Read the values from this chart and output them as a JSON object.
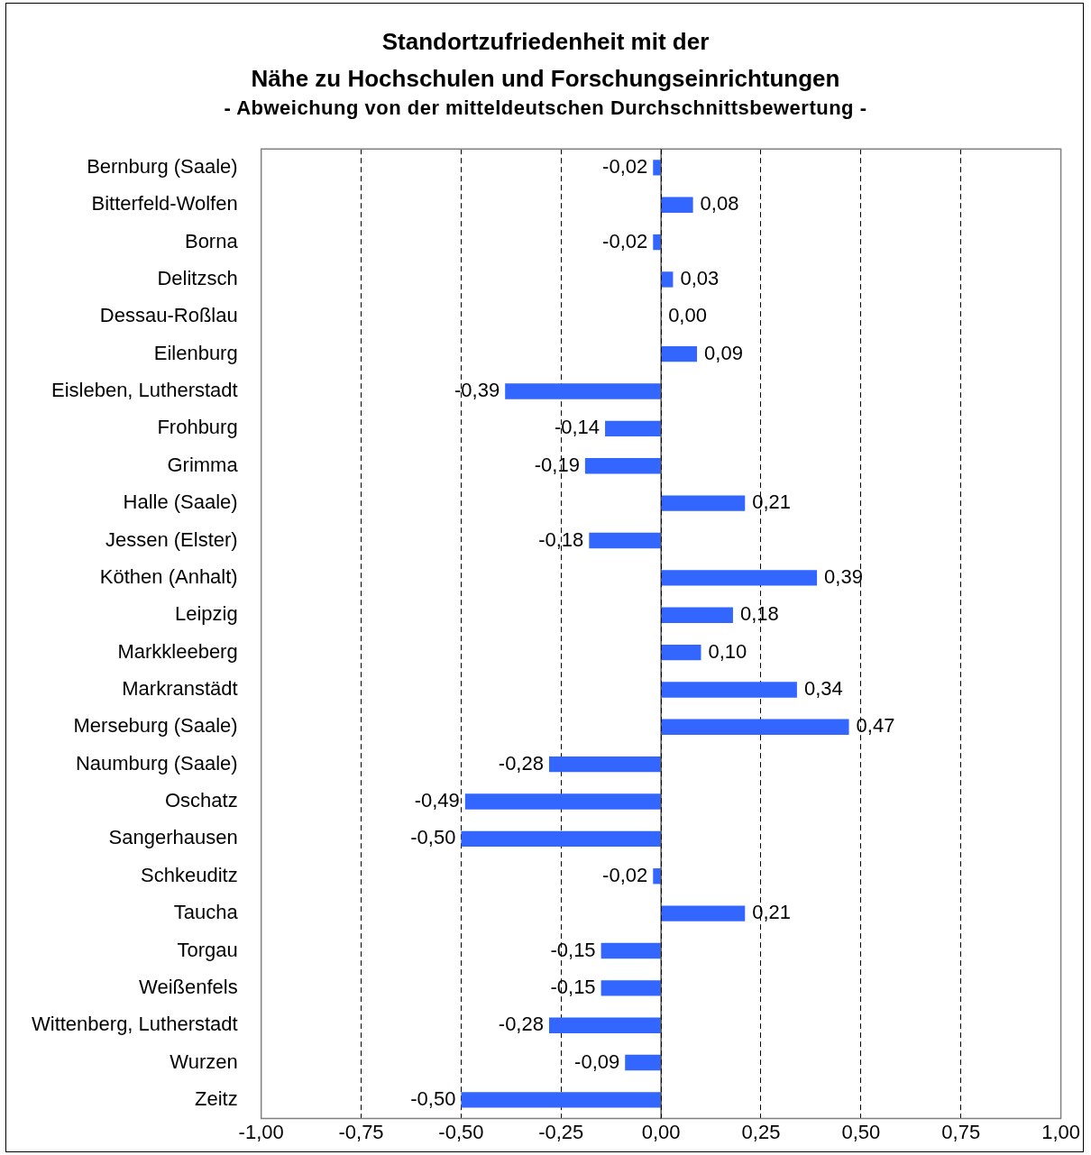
{
  "chart_data": {
    "type": "bar",
    "orientation": "horizontal",
    "title": "Standortzufriedenheit mit der\nNähe zu Hochschulen und Forschungseinrichtungen",
    "subtitle": "- Abweichung von der mitteldeutschen Durchschnittsbewertung -",
    "categories": [
      "Bernburg (Saale)",
      "Bitterfeld-Wolfen",
      "Borna",
      "Delitzsch",
      "Dessau-Roßlau",
      "Eilenburg",
      "Eisleben, Lutherstadt",
      "Frohburg",
      "Grimma",
      "Halle (Saale)",
      "Jessen (Elster)",
      "Köthen (Anhalt)",
      "Leipzig",
      "Markkleeberg",
      "Markranstädt",
      "Merseburg (Saale)",
      "Naumburg (Saale)",
      "Oschatz",
      "Sangerhausen",
      "Schkeuditz",
      "Taucha",
      "Torgau",
      "Weißenfels",
      "Wittenberg, Lutherstadt",
      "Wurzen",
      "Zeitz"
    ],
    "values": [
      -0.02,
      0.08,
      -0.02,
      0.03,
      0.0,
      0.09,
      -0.39,
      -0.14,
      -0.19,
      0.21,
      -0.18,
      0.39,
      0.18,
      0.1,
      0.34,
      0.47,
      -0.28,
      -0.49,
      -0.5,
      -0.02,
      0.21,
      -0.15,
      -0.15,
      -0.28,
      -0.09,
      -0.5
    ],
    "value_labels": [
      "-0,02",
      "0,08",
      "-0,02",
      "0,03",
      "0,00",
      "0,09",
      "-0,39",
      "-0,14",
      "-0,19",
      "0,21",
      "-0,18",
      "0,39",
      "0,18",
      "0,10",
      "0,34",
      "0,47",
      "-0,28",
      "-0,49",
      "-0,50",
      "-0,02",
      "0,21",
      "-0,15",
      "-0,15",
      "-0,28",
      "-0,09",
      "-0,50"
    ],
    "color": "#3366ff",
    "xlim": [
      -1,
      1
    ],
    "xticks": [
      {
        "value": -1,
        "label": "-1,00"
      },
      {
        "value": -0.75,
        "label": "-0,75"
      },
      {
        "value": -0.5,
        "label": "-0,50"
      },
      {
        "value": -0.25,
        "label": "-0,25"
      },
      {
        "value": 0,
        "label": "0,00"
      },
      {
        "value": 0.25,
        "label": "0,25"
      },
      {
        "value": 0.5,
        "label": "0,50"
      },
      {
        "value": 0.75,
        "label": "0,75"
      },
      {
        "value": 1,
        "label": "1,00"
      }
    ],
    "grid": "x"
  }
}
